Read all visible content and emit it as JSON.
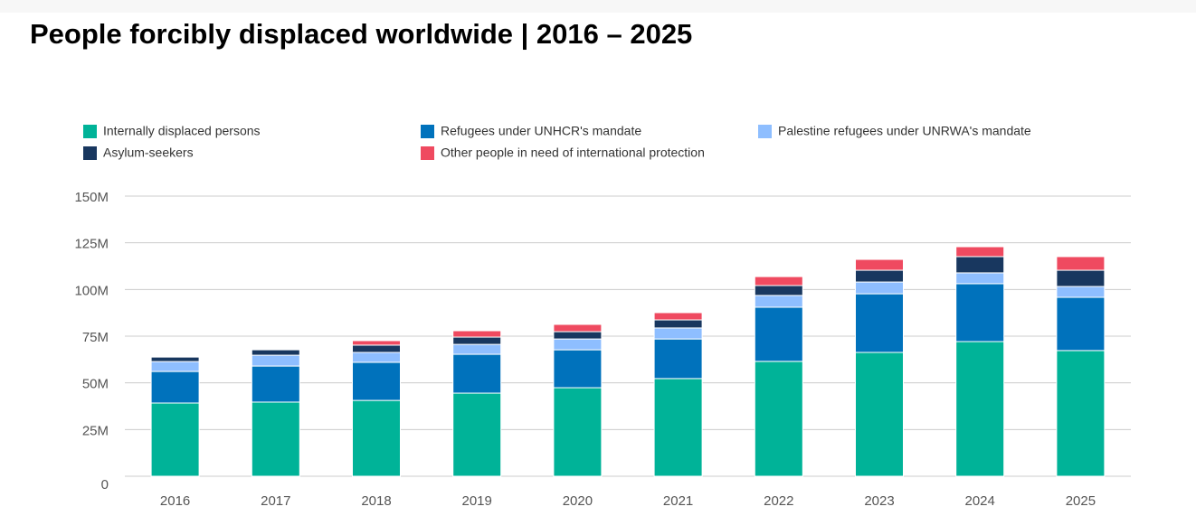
{
  "chart_data": {
    "type": "stacked-bar",
    "title": "People forcibly displaced worldwide | 2016 – 2025",
    "categories": [
      "2016",
      "2017",
      "2018",
      "2019",
      "2020",
      "2021",
      "2022",
      "2023",
      "2024",
      "2025"
    ],
    "series": [
      {
        "name": "Internally displaced persons",
        "color": "#00b398",
        "values": [
          39.2,
          39.7,
          40.6,
          44.5,
          47.4,
          52.3,
          61.5,
          66.3,
          72.1,
          67.3
        ]
      },
      {
        "name": "Refugees under UNHCR's mandate",
        "color": "#0072bc",
        "values": [
          16.9,
          19.3,
          20.4,
          20.8,
          20.3,
          21.2,
          29.0,
          31.4,
          31.0,
          28.5
        ]
      },
      {
        "name": "Palestine refugees under UNRWA's mandate",
        "color": "#8ebeff",
        "values": [
          5.3,
          5.8,
          5.3,
          5.3,
          5.8,
          5.9,
          6.3,
          6.3,
          5.8,
          5.8
        ]
      },
      {
        "name": "Asylum-seekers",
        "color": "#18375f",
        "values": [
          2.4,
          2.9,
          3.9,
          3.9,
          3.9,
          4.3,
          5.3,
          6.3,
          8.7,
          8.7
        ]
      },
      {
        "name": "Other people in need of international protection",
        "color": "#ef4a60",
        "values": [
          0,
          0,
          2.4,
          3.4,
          3.9,
          3.9,
          4.8,
          5.8,
          5.3,
          7.3
        ]
      }
    ],
    "ylim": [
      0,
      150
    ],
    "yticks": [
      0,
      {
        "value": 25,
        "label": "25M"
      },
      {
        "value": 50,
        "label": "50M"
      },
      {
        "value": 75,
        "label": "75M"
      },
      {
        "value": 100,
        "label": "100M"
      },
      {
        "value": 125,
        "label": "125M"
      },
      {
        "value": 150,
        "label": "150M"
      }
    ],
    "grid": true
  }
}
